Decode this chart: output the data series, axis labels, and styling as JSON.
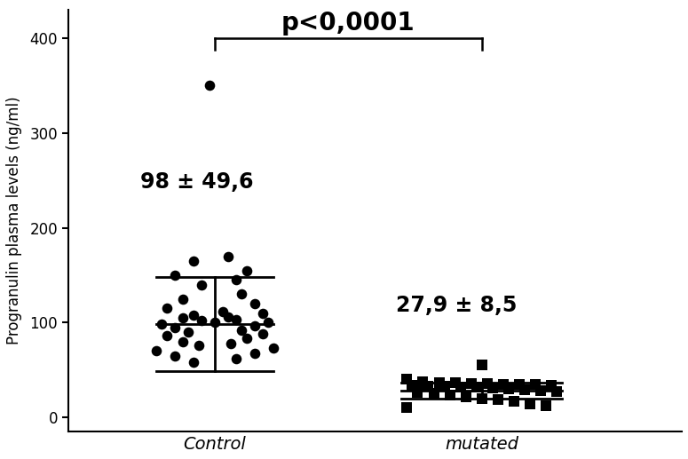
{
  "control_mean": 98,
  "control_sd": 49.6,
  "mutated_mean": 27.9,
  "mutated_sd": 8.5,
  "control_label": "98 ± 49,6",
  "mutated_label": "27,9 ± 8,5",
  "pvalue_label": "p<0,0001",
  "ylabel": "Progranulin plasma levels (ng/ml)",
  "group_labels": [
    "Control",
    "mutated"
  ],
  "ylim": [
    -15,
    430
  ],
  "yticks": [
    0,
    100,
    200,
    300,
    400
  ],
  "control_y": [
    350,
    170,
    165,
    155,
    150,
    145,
    140,
    130,
    125,
    120,
    115,
    112,
    110,
    108,
    106,
    105,
    103,
    102,
    100,
    100,
    98,
    97,
    95,
    92,
    90,
    88,
    86,
    83,
    80,
    78,
    76,
    73,
    70,
    68,
    65,
    62,
    58
  ],
  "control_x_jitter": [
    -0.02,
    0.05,
    -0.08,
    0.12,
    -0.15,
    0.08,
    -0.05,
    0.1,
    -0.12,
    0.15,
    -0.18,
    0.03,
    0.18,
    -0.08,
    0.05,
    -0.12,
    0.08,
    -0.05,
    0.0,
    0.2,
    -0.2,
    0.15,
    -0.15,
    0.1,
    -0.1,
    0.18,
    -0.18,
    0.12,
    -0.12,
    0.06,
    -0.06,
    0.22,
    -0.22,
    0.15,
    -0.15,
    0.08,
    -0.08
  ],
  "mutated_y": [
    55,
    40,
    38,
    37,
    37,
    36,
    36,
    35,
    35,
    35,
    34,
    34,
    33,
    33,
    32,
    32,
    31,
    30,
    29,
    28,
    27,
    26,
    25,
    24,
    22,
    20,
    19,
    17,
    14,
    12,
    10
  ],
  "mutated_x_jitter": [
    0.0,
    -0.28,
    -0.22,
    -0.16,
    -0.1,
    -0.04,
    0.02,
    0.08,
    0.14,
    0.2,
    0.26,
    -0.26,
    -0.2,
    -0.14,
    -0.08,
    -0.02,
    0.04,
    0.1,
    0.16,
    0.22,
    0.28,
    -0.24,
    -0.18,
    -0.12,
    -0.06,
    0.0,
    0.06,
    0.12,
    0.18,
    0.24,
    -0.28
  ],
  "bg_color": "#ffffff",
  "point_color": "#000000",
  "text_color": "#000000",
  "ctrl_bar_hw": 0.22,
  "mut_bar_hw": 0.3
}
